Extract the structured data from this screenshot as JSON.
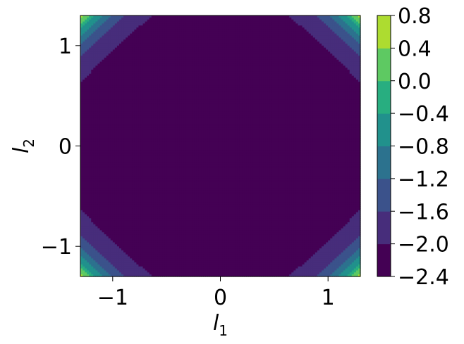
{
  "chart_data": {
    "type": "heatmap",
    "subtype": "filled-contour",
    "title": "",
    "xlabel": "l",
    "xlabel_sub": "1",
    "ylabel": "l",
    "ylabel_sub": "2",
    "xlim": [
      -1.3,
      1.3
    ],
    "ylim": [
      -1.3,
      1.3
    ],
    "xticks": [
      -1,
      0,
      1
    ],
    "xtick_labels": [
      "−1",
      "0",
      "1"
    ],
    "yticks": [
      -1,
      0,
      1
    ],
    "ytick_labels": [
      "−1",
      "0",
      "1"
    ],
    "colormap": "viridis",
    "levels": [
      -2.4,
      -2.0,
      -1.6,
      -1.2,
      -0.8,
      -0.4,
      0.0,
      0.4,
      0.8
    ],
    "colorbar_tick_labels": [
      "−2.4",
      "−2.0",
      "−1.6",
      "−1.2",
      "−0.8",
      "−0.4",
      "0.0",
      "0.4",
      "0.8"
    ],
    "level_colors": [
      "#440154",
      "#472d7b",
      "#3b528b",
      "#2c728e",
      "#21918c",
      "#28ae80",
      "#5ec962",
      "#addc30",
      "#fde725"
    ],
    "features": [
      {
        "kind": "minimum",
        "x": 0,
        "y": 0.87,
        "value_range": [
          -2.4,
          -2.0
        ]
      },
      {
        "kind": "minimum",
        "x": 0,
        "y": -0.87,
        "value_range": [
          -2.4,
          -2.0
        ]
      },
      {
        "kind": "minimum",
        "x": -0.87,
        "y": 0,
        "value_range": [
          -2.4,
          -2.0
        ]
      },
      {
        "kind": "minimum",
        "x": 0.87,
        "y": 0,
        "value_range": [
          -2.4,
          -2.0
        ]
      },
      {
        "kind": "maximum",
        "x": -1.3,
        "y": 1.3,
        "value_range": [
          0.4,
          0.8
        ]
      },
      {
        "kind": "maximum",
        "x": 1.3,
        "y": 1.3,
        "value_range": [
          0.4,
          0.8
        ]
      },
      {
        "kind": "maximum",
        "x": -1.3,
        "y": -1.3,
        "value_range": [
          0.4,
          0.8
        ]
      },
      {
        "kind": "maximum",
        "x": 1.3,
        "y": -1.3,
        "value_range": [
          0.4,
          0.8
        ]
      }
    ],
    "grid": false,
    "colorbar": "right"
  }
}
